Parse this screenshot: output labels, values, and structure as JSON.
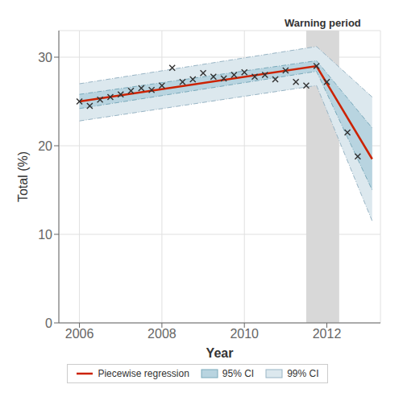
{
  "chart_data": {
    "type": "line",
    "x_label": "Year",
    "y_label": "Total (%)",
    "xlim": [
      2005.5,
      2013.3
    ],
    "ylim": [
      0,
      33
    ],
    "xticks": [
      2006,
      2008,
      2010,
      2012
    ],
    "yticks": [
      0,
      10,
      20,
      30
    ],
    "grid": true,
    "legend": "bottom",
    "shaded_span": {
      "x": [
        2011.5,
        2012.3
      ],
      "color": "#d8d8d8",
      "label": "Warning period"
    },
    "series": [
      {
        "name": "Piecewise regression",
        "type": "line",
        "color": "#cc2200",
        "x": [
          2006.0,
          2011.75,
          2013.1
        ],
        "values": [
          25.0,
          29.0,
          18.5
        ]
      },
      {
        "name": "95% CI",
        "type": "band",
        "color": "#b8d4e0",
        "edge_color": "#7aaabb",
        "line_style": "dashdot",
        "x": [
          2006.0,
          2011.75,
          2013.1
        ],
        "lower": [
          24.2,
          28.4,
          15.0
        ],
        "upper": [
          25.8,
          29.6,
          22.0
        ]
      },
      {
        "name": "99% CI",
        "type": "band",
        "color": "#dce8ee",
        "edge_color": "#99b5c5",
        "line_style": "dashdot",
        "x": [
          2006.0,
          2011.75,
          2013.1
        ],
        "lower": [
          22.8,
          26.8,
          11.5
        ],
        "upper": [
          27.0,
          31.2,
          25.5
        ]
      },
      {
        "type": "scatter",
        "marker": "x",
        "color": "#333333",
        "x": [
          2006.0,
          2006.25,
          2006.5,
          2006.75,
          2007.0,
          2007.25,
          2007.5,
          2007.75,
          2008.0,
          2008.25,
          2008.5,
          2008.75,
          2009.0,
          2009.25,
          2009.5,
          2009.75,
          2010.0,
          2010.25,
          2010.5,
          2010.75,
          2011.0,
          2011.25,
          2011.5,
          2011.75,
          2012.0,
          2012.5,
          2012.75
        ],
        "values": [
          25.0,
          24.5,
          25.2,
          25.5,
          25.8,
          26.2,
          26.5,
          26.3,
          26.8,
          28.8,
          27.2,
          27.5,
          28.2,
          27.8,
          27.6,
          28.0,
          28.3,
          27.8,
          28.0,
          27.5,
          28.5,
          27.2,
          26.8,
          29.0,
          27.2,
          21.5,
          18.8
        ]
      }
    ]
  }
}
